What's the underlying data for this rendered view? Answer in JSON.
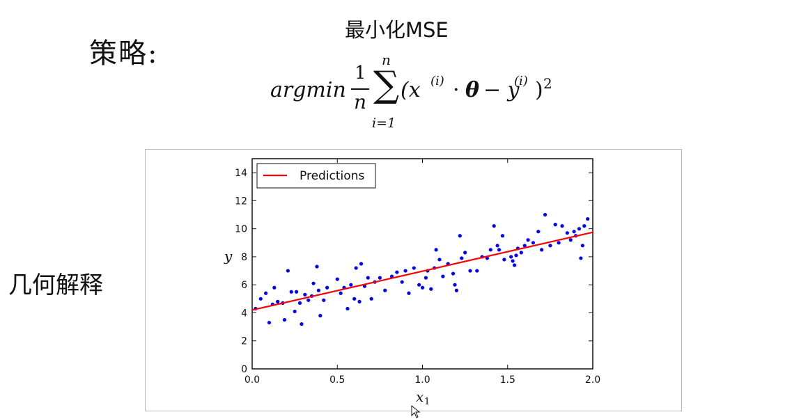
{
  "strategy_label": "策略:",
  "geometry_label": "几何解释",
  "mse_title": "最小化MSE",
  "formula": {
    "argmin": "argmin",
    "frac_num": "1",
    "frac_den": "n",
    "sum_upper": "n",
    "sum_lower": "i=1",
    "term_open": "(x",
    "x_superscript": "(i)",
    "dot": "·",
    "theta": "θ",
    "minus_y": "− y",
    "y_superscript": "(i)",
    "term_close": ")",
    "power": "2"
  },
  "chart_data": {
    "type": "scatter",
    "title": "",
    "xlabel": "x1",
    "ylabel": "y",
    "xlim": [
      0,
      2
    ],
    "ylim": [
      0,
      15
    ],
    "xticks": [
      "0.0",
      "0.5",
      "1.0",
      "1.5",
      "2.0"
    ],
    "yticks": [
      "0",
      "2",
      "4",
      "6",
      "8",
      "10",
      "12",
      "14"
    ],
    "legend": {
      "label": "Predictions",
      "placement": "top-left"
    },
    "colors": {
      "points": "#0000ff",
      "line": "#ff0000"
    },
    "prediction_line": {
      "x": [
        0,
        2
      ],
      "y": [
        4.2,
        9.75
      ]
    },
    "points": [
      [
        0.02,
        4.3
      ],
      [
        0.05,
        5.0
      ],
      [
        0.08,
        5.4
      ],
      [
        0.1,
        3.3
      ],
      [
        0.12,
        4.6
      ],
      [
        0.13,
        5.8
      ],
      [
        0.15,
        4.8
      ],
      [
        0.18,
        4.7
      ],
      [
        0.19,
        3.5
      ],
      [
        0.21,
        7.0
      ],
      [
        0.23,
        5.5
      ],
      [
        0.25,
        4.1
      ],
      [
        0.26,
        5.5
      ],
      [
        0.28,
        4.7
      ],
      [
        0.29,
        3.2
      ],
      [
        0.31,
        5.3
      ],
      [
        0.33,
        4.9
      ],
      [
        0.35,
        5.2
      ],
      [
        0.36,
        6.1
      ],
      [
        0.38,
        7.3
      ],
      [
        0.39,
        5.6
      ],
      [
        0.4,
        3.8
      ],
      [
        0.42,
        4.9
      ],
      [
        0.44,
        5.8
      ],
      [
        0.5,
        6.4
      ],
      [
        0.52,
        5.4
      ],
      [
        0.54,
        5.8
      ],
      [
        0.56,
        4.3
      ],
      [
        0.58,
        6.0
      ],
      [
        0.6,
        5.0
      ],
      [
        0.61,
        7.2
      ],
      [
        0.63,
        4.8
      ],
      [
        0.64,
        7.5
      ],
      [
        0.66,
        5.9
      ],
      [
        0.68,
        6.5
      ],
      [
        0.7,
        5.0
      ],
      [
        0.72,
        6.2
      ],
      [
        0.75,
        6.5
      ],
      [
        0.78,
        5.6
      ],
      [
        0.82,
        6.6
      ],
      [
        0.85,
        6.9
      ],
      [
        0.88,
        6.2
      ],
      [
        0.9,
        7.0
      ],
      [
        0.92,
        5.4
      ],
      [
        0.95,
        7.2
      ],
      [
        0.98,
        6.0
      ],
      [
        1.0,
        5.8
      ],
      [
        1.02,
        6.5
      ],
      [
        1.03,
        7.0
      ],
      [
        1.05,
        5.7
      ],
      [
        1.07,
        7.2
      ],
      [
        1.08,
        8.5
      ],
      [
        1.1,
        7.8
      ],
      [
        1.12,
        6.6
      ],
      [
        1.15,
        7.5
      ],
      [
        1.18,
        6.8
      ],
      [
        1.19,
        6.0
      ],
      [
        1.2,
        5.6
      ],
      [
        1.22,
        9.5
      ],
      [
        1.23,
        7.9
      ],
      [
        1.25,
        8.3
      ],
      [
        1.28,
        7.0
      ],
      [
        1.32,
        7.0
      ],
      [
        1.35,
        8.0
      ],
      [
        1.38,
        7.9
      ],
      [
        1.4,
        8.5
      ],
      [
        1.42,
        10.2
      ],
      [
        1.44,
        8.8
      ],
      [
        1.45,
        8.5
      ],
      [
        1.47,
        9.5
      ],
      [
        1.48,
        7.8
      ],
      [
        1.52,
        8.0
      ],
      [
        1.53,
        7.7
      ],
      [
        1.54,
        7.4
      ],
      [
        1.55,
        8.1
      ],
      [
        1.56,
        8.6
      ],
      [
        1.58,
        8.3
      ],
      [
        1.6,
        8.8
      ],
      [
        1.62,
        9.2
      ],
      [
        1.65,
        9.0
      ],
      [
        1.68,
        9.8
      ],
      [
        1.7,
        8.5
      ],
      [
        1.72,
        11.0
      ],
      [
        1.75,
        8.8
      ],
      [
        1.78,
        10.3
      ],
      [
        1.8,
        9.0
      ],
      [
        1.82,
        10.2
      ],
      [
        1.85,
        9.7
      ],
      [
        1.87,
        9.2
      ],
      [
        1.89,
        9.8
      ],
      [
        1.9,
        9.5
      ],
      [
        1.92,
        10.0
      ],
      [
        1.93,
        7.9
      ],
      [
        1.94,
        8.8
      ],
      [
        1.95,
        10.2
      ],
      [
        1.97,
        10.7
      ]
    ]
  }
}
